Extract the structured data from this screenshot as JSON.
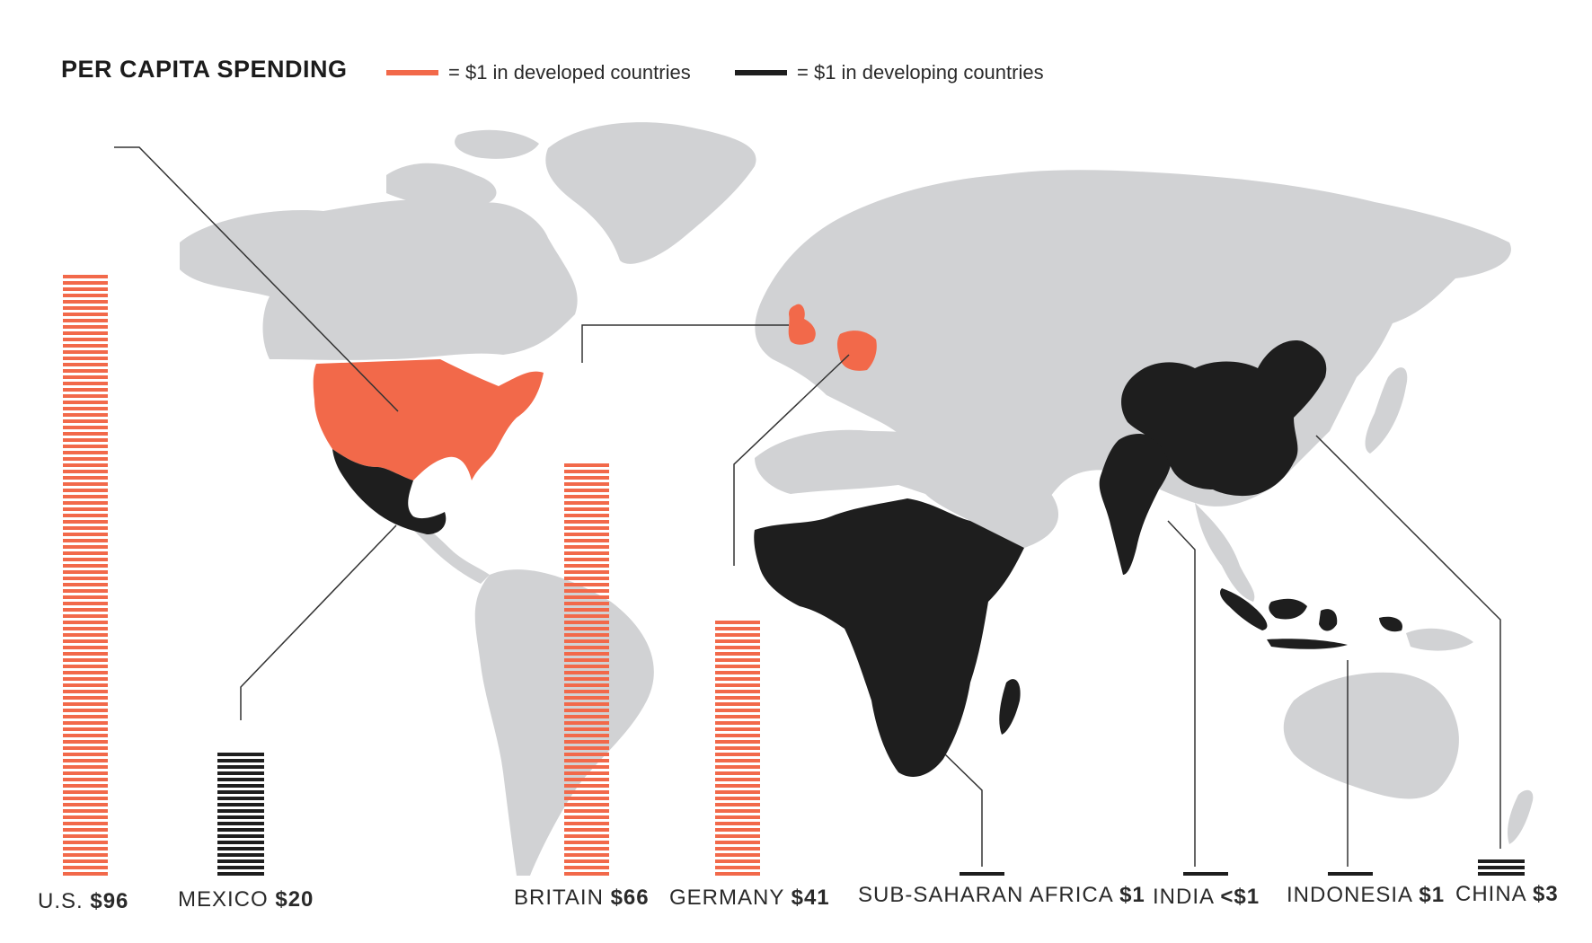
{
  "title": "PER CAPITA SPENDING",
  "legend": [
    {
      "label": "= $1 in developed countries",
      "color": "#F2694A"
    },
    {
      "label": "= $1 in developing countries",
      "color": "#1E1E1E"
    }
  ],
  "colors": {
    "developed": "#F2694A",
    "developing": "#1E1E1E",
    "land": "#D1D2D4",
    "leader": "#333333"
  },
  "chart_data": {
    "type": "bar",
    "title": "PER CAPITA SPENDING",
    "unit": "$ per capita",
    "categories": [
      "U.S.",
      "MEXICO",
      "BRITAIN",
      "GERMANY",
      "SUB-SAHARAN AFRICA",
      "INDIA",
      "INDONESIA",
      "CHINA"
    ],
    "series": [
      {
        "values": [
          96,
          20,
          66,
          41,
          1,
          1,
          1,
          3
        ]
      }
    ],
    "points": [
      {
        "name": "U.S.",
        "value_label": "$96",
        "value": 96,
        "group": "developed"
      },
      {
        "name": "MEXICO",
        "value_label": "$20",
        "value": 20,
        "group": "developing"
      },
      {
        "name": "BRITAIN",
        "value_label": "$66",
        "value": 66,
        "group": "developed"
      },
      {
        "name": "GERMANY",
        "value_label": "$41",
        "value": 41,
        "group": "developed"
      },
      {
        "name": "SUB-SAHARAN AFRICA",
        "value_label": "$1",
        "value": 1,
        "group": "developing"
      },
      {
        "name": "INDIA",
        "value_label": "<$1",
        "value": 1,
        "group": "developing"
      },
      {
        "name": "INDONESIA",
        "value_label": "$1",
        "value": 1,
        "group": "developing"
      },
      {
        "name": "CHINA",
        "value_label": "$3",
        "value": 3,
        "group": "developing"
      }
    ]
  }
}
